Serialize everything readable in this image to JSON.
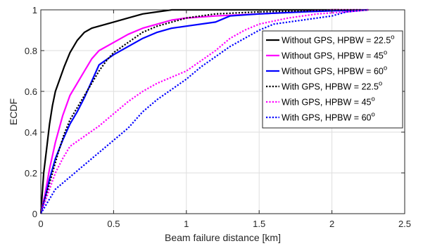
{
  "chart_data": {
    "type": "line",
    "title": "",
    "xlabel": "Beam failure distance [km]",
    "ylabel": "ECDF",
    "xlim": [
      0,
      2.5
    ],
    "ylim": [
      0,
      1
    ],
    "xticks": [
      0,
      0.5,
      1,
      1.5,
      2,
      2.5
    ],
    "yticks": [
      0,
      0.2,
      0.4,
      0.6,
      0.8,
      1
    ],
    "xtick_labels": [
      "0",
      "0.5",
      "1",
      "1.5",
      "2",
      "2.5"
    ],
    "ytick_labels": [
      "0",
      "0.2",
      "0.4",
      "0.6",
      "0.8",
      "1"
    ],
    "grid": true,
    "legend_position": "right",
    "series": [
      {
        "name_prefix": "Without GPS, HPBW = ",
        "name_value": "22.5",
        "name_unit": "o",
        "color": "#000000",
        "style": "solid",
        "x": [
          0,
          0.02,
          0.04,
          0.06,
          0.08,
          0.1,
          0.13,
          0.16,
          0.2,
          0.25,
          0.3,
          0.35,
          0.4,
          0.5,
          0.6,
          0.7,
          0.8,
          0.9,
          1.0,
          1.5,
          2.05
        ],
        "y": [
          0,
          0.2,
          0.32,
          0.44,
          0.53,
          0.6,
          0.66,
          0.72,
          0.79,
          0.85,
          0.89,
          0.91,
          0.92,
          0.94,
          0.96,
          0.98,
          0.99,
          1.0,
          1.0,
          1.0,
          1.0
        ]
      },
      {
        "name_prefix": "Without GPS, HPBW = ",
        "name_value": "45",
        "name_unit": "o",
        "color": "#ff00ff",
        "style": "solid",
        "x": [
          0,
          0.03,
          0.06,
          0.1,
          0.15,
          0.2,
          0.25,
          0.3,
          0.35,
          0.4,
          0.5,
          0.6,
          0.7,
          0.8,
          0.9,
          1.0,
          1.2,
          1.5,
          1.8,
          2.0,
          2.25
        ],
        "y": [
          0,
          0.1,
          0.22,
          0.35,
          0.48,
          0.58,
          0.64,
          0.7,
          0.76,
          0.8,
          0.84,
          0.88,
          0.91,
          0.93,
          0.95,
          0.96,
          0.97,
          0.98,
          0.99,
          1.0,
          1.0
        ]
      },
      {
        "name_prefix": "Without GPS, HPBW = ",
        "name_value": "60",
        "name_unit": "o",
        "color": "#0000ff",
        "style": "solid",
        "x": [
          0,
          0.03,
          0.06,
          0.1,
          0.15,
          0.2,
          0.25,
          0.3,
          0.35,
          0.4,
          0.5,
          0.6,
          0.7,
          0.8,
          0.9,
          1.0,
          1.2,
          1.3,
          1.5,
          1.8,
          2.0,
          2.25
        ],
        "y": [
          0,
          0.08,
          0.17,
          0.27,
          0.36,
          0.44,
          0.5,
          0.57,
          0.65,
          0.73,
          0.78,
          0.82,
          0.86,
          0.89,
          0.91,
          0.92,
          0.94,
          0.97,
          0.98,
          0.99,
          0.995,
          1.0
        ]
      },
      {
        "name_prefix": "With GPS, HPBW = ",
        "name_value": "22.5",
        "name_unit": "o",
        "color": "#000000",
        "style": "dotted",
        "x": [
          0,
          0.04,
          0.08,
          0.12,
          0.16,
          0.2,
          0.25,
          0.3,
          0.35,
          0.4,
          0.45,
          0.5,
          0.6,
          0.7,
          0.8,
          0.9,
          1.0,
          1.2,
          1.5,
          1.8,
          2.0,
          2.2
        ],
        "y": [
          0,
          0.1,
          0.2,
          0.3,
          0.39,
          0.46,
          0.52,
          0.58,
          0.64,
          0.7,
          0.75,
          0.79,
          0.84,
          0.89,
          0.92,
          0.94,
          0.96,
          0.98,
          0.99,
          0.995,
          1.0,
          1.0
        ]
      },
      {
        "name_prefix": "With GPS, HPBW = ",
        "name_value": "45",
        "name_unit": "o",
        "color": "#ff00ff",
        "style": "dotted",
        "x": [
          0,
          0.05,
          0.1,
          0.15,
          0.2,
          0.3,
          0.4,
          0.5,
          0.6,
          0.7,
          0.8,
          0.9,
          1.0,
          1.1,
          1.2,
          1.3,
          1.4,
          1.5,
          1.7,
          1.9,
          2.1,
          2.25
        ],
        "y": [
          0,
          0.1,
          0.2,
          0.27,
          0.33,
          0.38,
          0.43,
          0.49,
          0.55,
          0.6,
          0.64,
          0.67,
          0.7,
          0.75,
          0.8,
          0.86,
          0.9,
          0.93,
          0.96,
          0.98,
          0.99,
          1.0
        ]
      },
      {
        "name_prefix": "With GPS, HPBW = ",
        "name_value": "60",
        "name_unit": "o",
        "color": "#0000ff",
        "style": "dotted",
        "x": [
          0,
          0.05,
          0.1,
          0.2,
          0.3,
          0.4,
          0.5,
          0.6,
          0.7,
          0.8,
          0.9,
          1.0,
          1.1,
          1.2,
          1.3,
          1.4,
          1.5,
          1.6,
          1.8,
          2.0,
          2.1,
          2.25
        ],
        "y": [
          0,
          0.06,
          0.12,
          0.18,
          0.24,
          0.3,
          0.36,
          0.42,
          0.5,
          0.56,
          0.61,
          0.66,
          0.72,
          0.77,
          0.82,
          0.86,
          0.9,
          0.93,
          0.95,
          0.97,
          0.99,
          1.0
        ]
      }
    ]
  }
}
